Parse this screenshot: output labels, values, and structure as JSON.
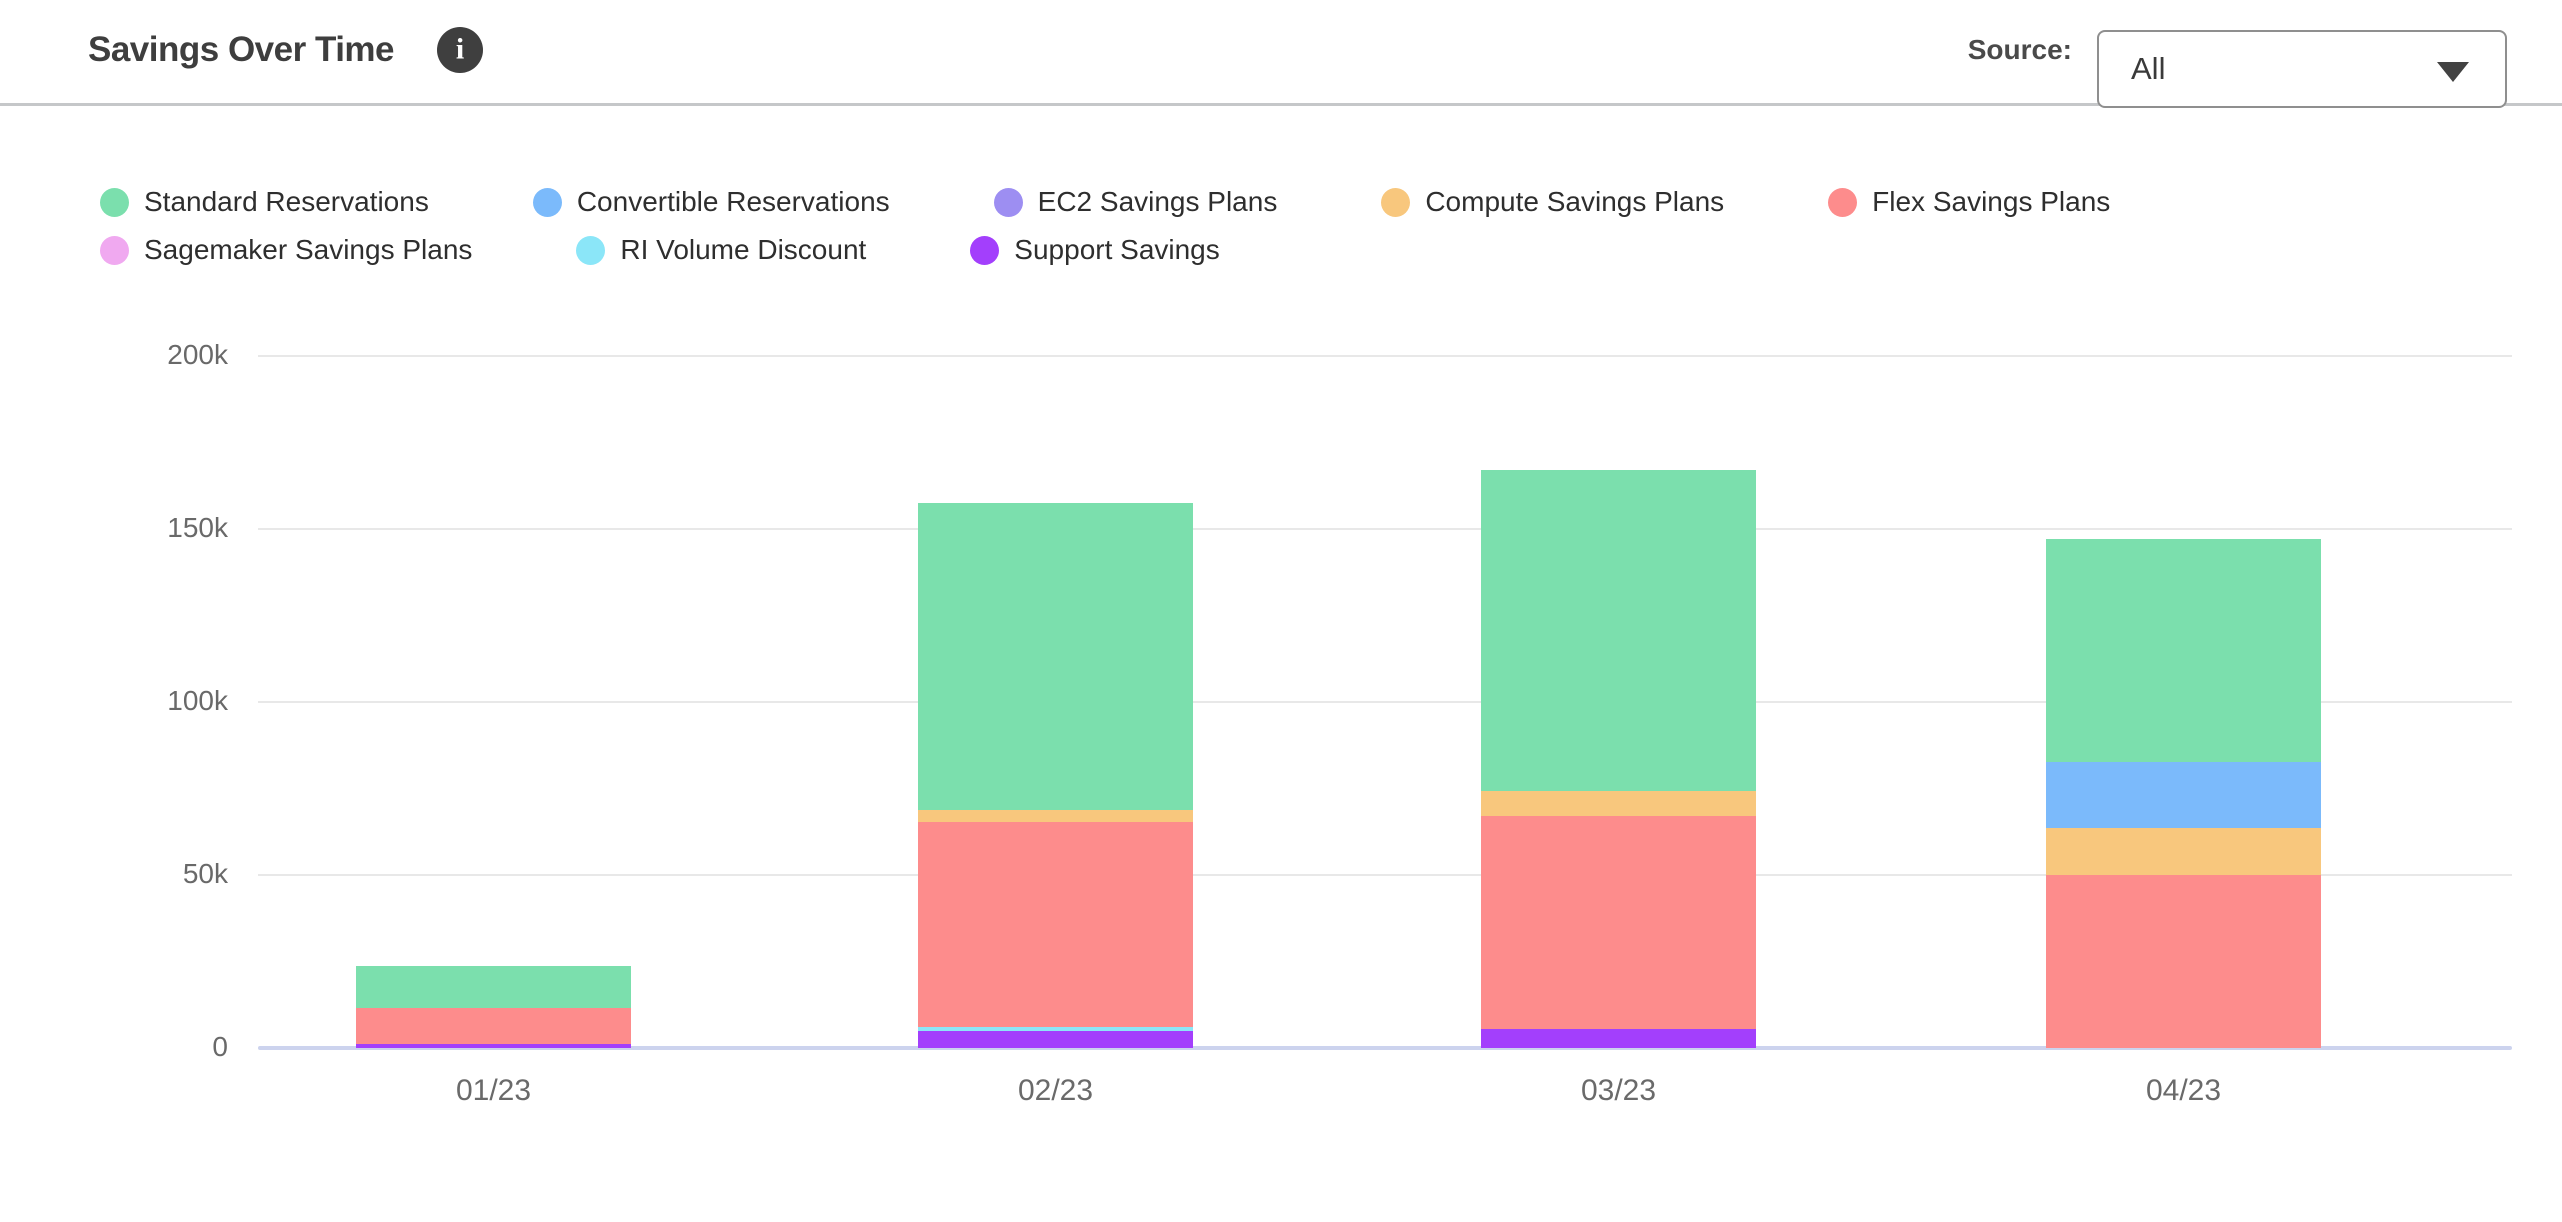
{
  "header": {
    "title": "Savings Over Time",
    "source_label": "Source:",
    "source_value": "All",
    "info_glyph": "i",
    "accent_text_color": "#3e3e3e"
  },
  "chart_data": {
    "type": "bar",
    "variant": "stacked",
    "title": "Savings Over Time",
    "xlabel": "",
    "ylabel": "",
    "y_unit": "k",
    "ylim": [
      0,
      200
    ],
    "grid": true,
    "legend_position": "top",
    "categories": [
      "01/23",
      "02/23",
      "03/23",
      "04/23"
    ],
    "series": [
      {
        "name": "Standard Reservations",
        "color": "#7bdfad",
        "values": [
          12.2,
          88.7,
          92.8,
          64.4
        ]
      },
      {
        "name": "Convertible Reservations",
        "color": "#7bbafb",
        "values": [
          0,
          0,
          0,
          19.1
        ]
      },
      {
        "name": "EC2 Savings Plans",
        "color": "#9d8ef2",
        "values": [
          0,
          0,
          0,
          0
        ]
      },
      {
        "name": "Compute Savings Plans",
        "color": "#f8c77d",
        "values": [
          0,
          3.5,
          7.2,
          13.6
        ]
      },
      {
        "name": "Flex Savings Plans",
        "color": "#fd8c8c",
        "values": [
          10.2,
          59.2,
          61.6,
          49.9
        ]
      },
      {
        "name": "Sagemaker Savings Plans",
        "color": "#f0a9f0",
        "values": [
          0,
          0,
          0,
          0
        ]
      },
      {
        "name": "RI Volume Discount",
        "color": "#8be6f8",
        "values": [
          0,
          1.2,
          0,
          0
        ]
      },
      {
        "name": "Support Savings",
        "color": "#a33ffc",
        "values": [
          1.3,
          4.9,
          5.6,
          0
        ]
      }
    ],
    "stack_order_bottom_to_top": [
      "Support Savings",
      "RI Volume Discount",
      "Sagemaker Savings Plans",
      "Flex Savings Plans",
      "Compute Savings Plans",
      "EC2 Savings Plans",
      "Convertible Reservations",
      "Standard Reservations"
    ],
    "totals": [
      23.7,
      157.5,
      167.2,
      147.0
    ],
    "y_ticks": [
      {
        "value": 0,
        "label": "0"
      },
      {
        "value": 50,
        "label": "50k"
      },
      {
        "value": 100,
        "label": "100k"
      },
      {
        "value": 150,
        "label": "150k"
      },
      {
        "value": 200,
        "label": "200k"
      }
    ],
    "colors": {
      "gridline": "#e8e8e8",
      "zero_axis": "#ccd3ee",
      "tick_text": "#696969"
    }
  }
}
